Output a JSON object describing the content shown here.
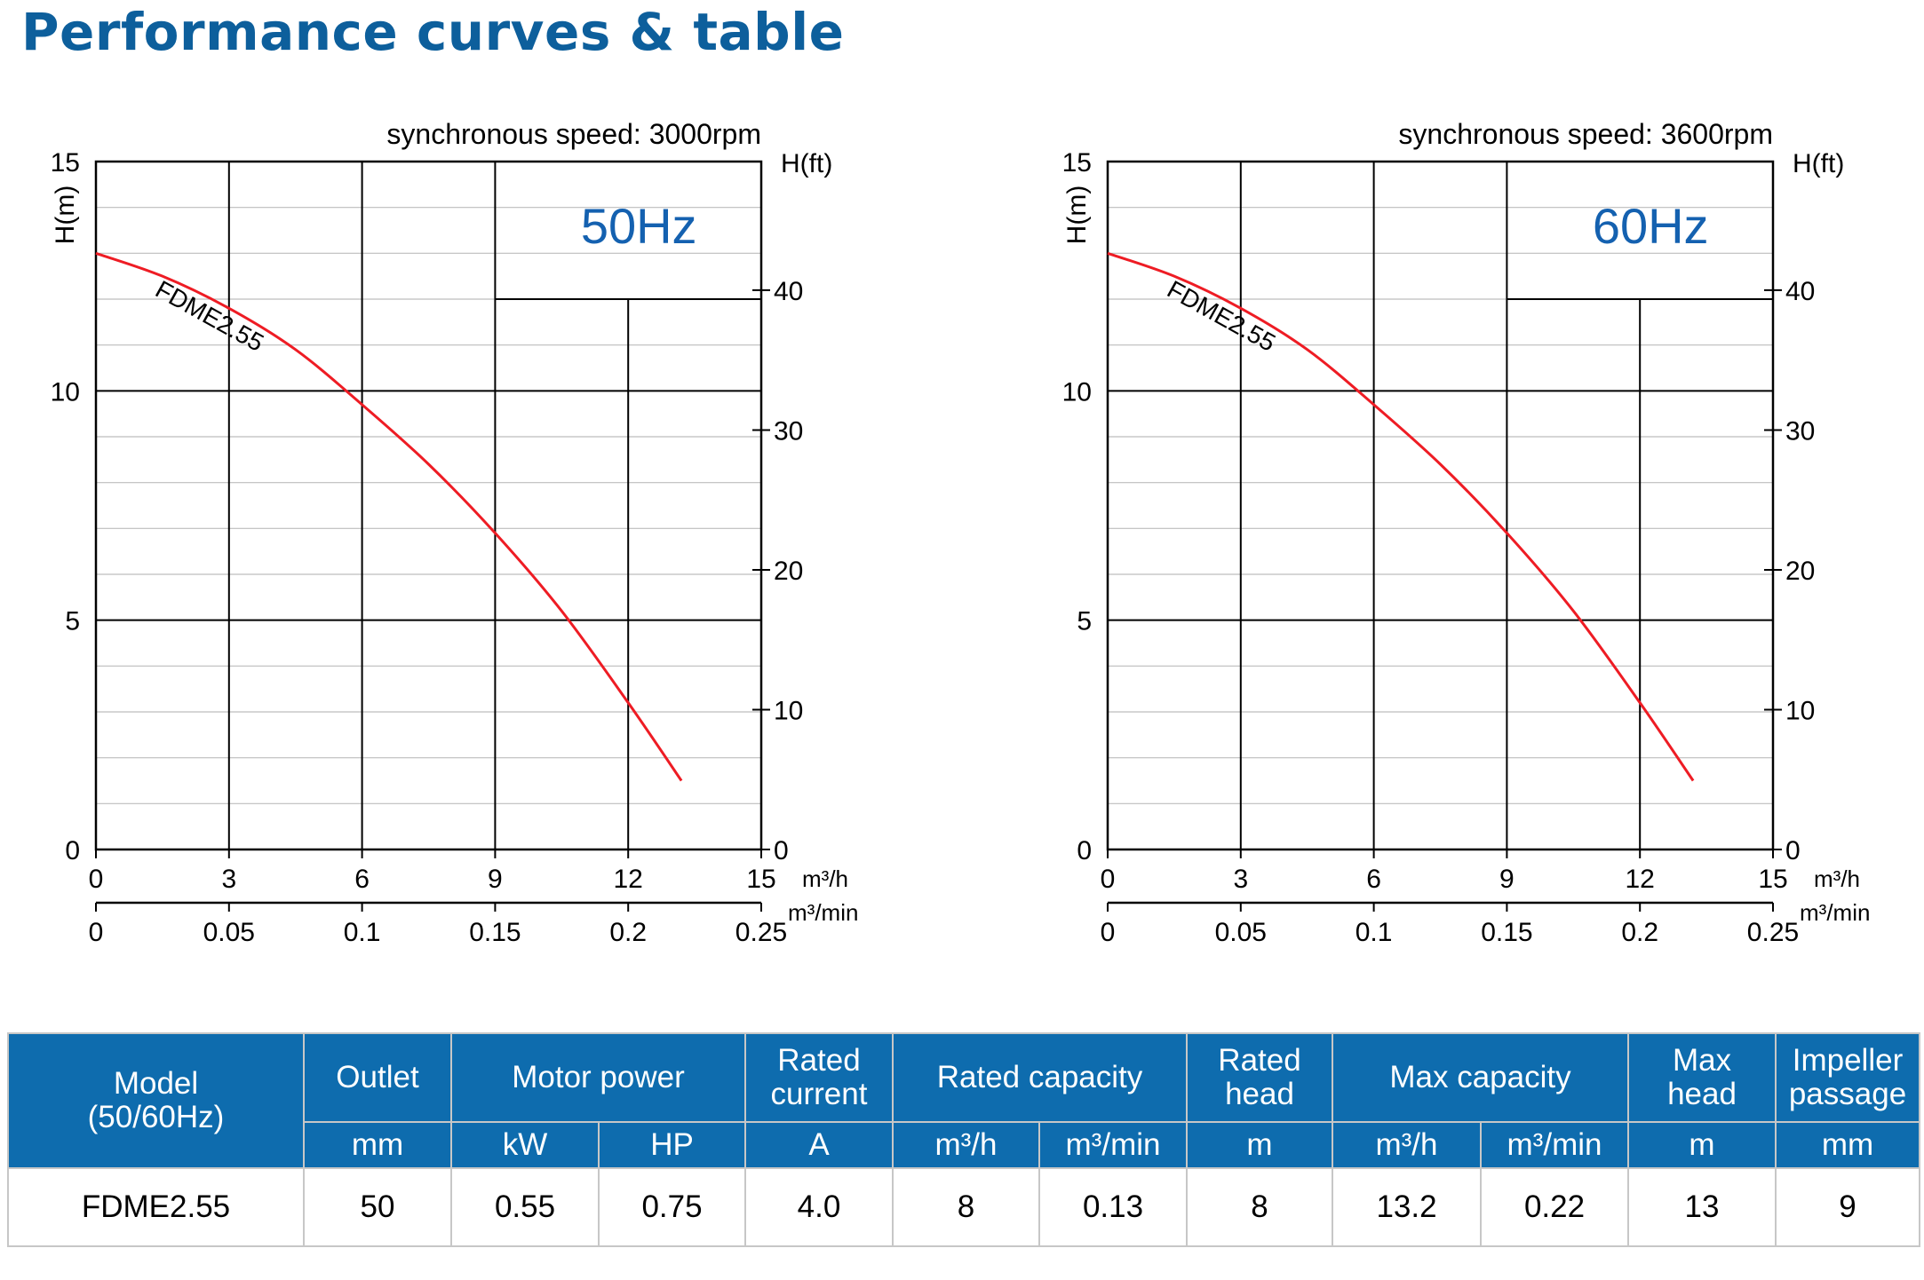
{
  "page": {
    "title": "Performance curves & table"
  },
  "chart_data": [
    {
      "type": "line",
      "title": "synchronous speed: 3000rpm",
      "frequency_label": "50Hz",
      "xlabel": "m³/h",
      "x2label": "m³/min",
      "ylabel": "H(m)",
      "y2label": "H(ft)",
      "xlim": [
        0,
        15
      ],
      "x2lim": [
        0,
        0.25
      ],
      "ylim": [
        0,
        15
      ],
      "y2lim": [
        0,
        49.2
      ],
      "x_ticks": [
        "0",
        "3",
        "6",
        "9",
        "12",
        "15"
      ],
      "x2_ticks": [
        "0",
        "0.05",
        "0.1",
        "0.15",
        "0.2",
        "0.25"
      ],
      "y_ticks": [
        "0",
        "5",
        "10",
        "15"
      ],
      "y2_ticks": [
        "0",
        "10",
        "20",
        "30",
        "40"
      ],
      "grid": true,
      "series": [
        {
          "name": "FDME2.55",
          "color": "#ee1c24",
          "x": [
            0,
            1.5,
            3,
            4.5,
            6,
            7.5,
            9,
            10.5,
            12,
            13.2
          ],
          "y": [
            13.0,
            12.5,
            11.8,
            10.9,
            9.7,
            8.4,
            6.9,
            5.2,
            3.2,
            1.5
          ]
        }
      ]
    },
    {
      "type": "line",
      "title": "synchronous speed: 3600rpm",
      "frequency_label": "60Hz",
      "xlabel": "m³/h",
      "x2label": "m³/min",
      "ylabel": "H(m)",
      "y2label": "H(ft)",
      "xlim": [
        0,
        15
      ],
      "x2lim": [
        0,
        0.25
      ],
      "ylim": [
        0,
        15
      ],
      "y2lim": [
        0,
        49.2
      ],
      "x_ticks": [
        "0",
        "3",
        "6",
        "9",
        "12",
        "15"
      ],
      "x2_ticks": [
        "0",
        "0.05",
        "0.1",
        "0.15",
        "0.2",
        "0.25"
      ],
      "y_ticks": [
        "0",
        "5",
        "10",
        "15"
      ],
      "y2_ticks": [
        "0",
        "10",
        "20",
        "30",
        "40"
      ],
      "grid": true,
      "series": [
        {
          "name": "FDME2.55",
          "color": "#ee1c24",
          "x": [
            0,
            1.5,
            3,
            4.5,
            6,
            7.5,
            9,
            10.5,
            12,
            13.2
          ],
          "y": [
            13.0,
            12.5,
            11.8,
            10.9,
            9.7,
            8.4,
            6.9,
            5.2,
            3.2,
            1.5
          ]
        }
      ]
    }
  ],
  "table": {
    "headers": {
      "model": "Model\n(50/60Hz)",
      "outlet": "Outlet",
      "motor_power": "Motor power",
      "rated_current": "Rated\ncurrent",
      "rated_capacity": "Rated capacity",
      "rated_head": "Rated\nhead",
      "max_capacity": "Max capacity",
      "max_head": "Max\nhead",
      "impeller_passage": "Impeller\npassage"
    },
    "units": [
      "mm",
      "kW",
      "HP",
      "A",
      "m³/h",
      "m³/min",
      "m",
      "m³/h",
      "m³/min",
      "m",
      "mm"
    ],
    "row": [
      "FDME2.55",
      "50",
      "0.55",
      "0.75",
      "4.0",
      "8",
      "0.13",
      "8",
      "13.2",
      "0.22",
      "13",
      "9"
    ]
  }
}
